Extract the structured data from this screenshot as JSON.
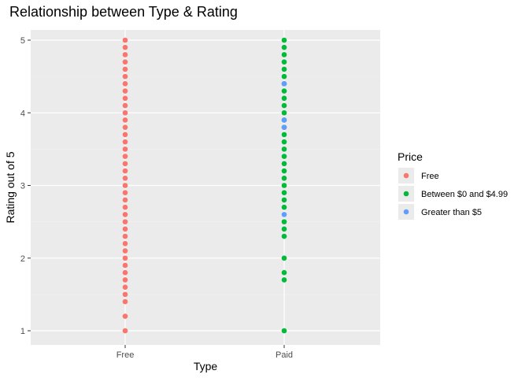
{
  "chart_data": {
    "type": "scatter",
    "title": "Relationship between Type & Rating",
    "xlabel": "Type",
    "ylabel": "Rating out of 5",
    "categories": [
      "Free",
      "Paid"
    ],
    "ylim": [
      1,
      5
    ],
    "yticks": [
      1,
      2,
      3,
      4,
      5
    ],
    "grid": true,
    "legend": {
      "title": "Price",
      "position": "right"
    },
    "series": [
      {
        "name": "Free",
        "color": "#F8766D",
        "points": [
          {
            "x": "Free",
            "y": 1.0
          },
          {
            "x": "Free",
            "y": 1.2
          },
          {
            "x": "Free",
            "y": 1.4
          },
          {
            "x": "Free",
            "y": 1.5
          },
          {
            "x": "Free",
            "y": 1.6
          },
          {
            "x": "Free",
            "y": 1.7
          },
          {
            "x": "Free",
            "y": 1.8
          },
          {
            "x": "Free",
            "y": 1.9
          },
          {
            "x": "Free",
            "y": 2.0
          },
          {
            "x": "Free",
            "y": 2.1
          },
          {
            "x": "Free",
            "y": 2.2
          },
          {
            "x": "Free",
            "y": 2.3
          },
          {
            "x": "Free",
            "y": 2.4
          },
          {
            "x": "Free",
            "y": 2.5
          },
          {
            "x": "Free",
            "y": 2.6
          },
          {
            "x": "Free",
            "y": 2.7
          },
          {
            "x": "Free",
            "y": 2.8
          },
          {
            "x": "Free",
            "y": 2.9
          },
          {
            "x": "Free",
            "y": 3.0
          },
          {
            "x": "Free",
            "y": 3.1
          },
          {
            "x": "Free",
            "y": 3.2
          },
          {
            "x": "Free",
            "y": 3.3
          },
          {
            "x": "Free",
            "y": 3.4
          },
          {
            "x": "Free",
            "y": 3.5
          },
          {
            "x": "Free",
            "y": 3.6
          },
          {
            "x": "Free",
            "y": 3.7
          },
          {
            "x": "Free",
            "y": 3.8
          },
          {
            "x": "Free",
            "y": 3.9
          },
          {
            "x": "Free",
            "y": 4.0
          },
          {
            "x": "Free",
            "y": 4.1
          },
          {
            "x": "Free",
            "y": 4.2
          },
          {
            "x": "Free",
            "y": 4.3
          },
          {
            "x": "Free",
            "y": 4.4
          },
          {
            "x": "Free",
            "y": 4.5
          },
          {
            "x": "Free",
            "y": 4.6
          },
          {
            "x": "Free",
            "y": 4.7
          },
          {
            "x": "Free",
            "y": 4.8
          },
          {
            "x": "Free",
            "y": 4.9
          },
          {
            "x": "Free",
            "y": 5.0
          }
        ]
      },
      {
        "name": "Between $0 and $4.99",
        "color": "#00BA38",
        "points": [
          {
            "x": "Paid",
            "y": 1.0
          },
          {
            "x": "Paid",
            "y": 1.7
          },
          {
            "x": "Paid",
            "y": 1.8
          },
          {
            "x": "Paid",
            "y": 2.0
          },
          {
            "x": "Paid",
            "y": 2.3
          },
          {
            "x": "Paid",
            "y": 2.4
          },
          {
            "x": "Paid",
            "y": 2.5
          },
          {
            "x": "Paid",
            "y": 2.7
          },
          {
            "x": "Paid",
            "y": 2.8
          },
          {
            "x": "Paid",
            "y": 2.9
          },
          {
            "x": "Paid",
            "y": 3.0
          },
          {
            "x": "Paid",
            "y": 3.1
          },
          {
            "x": "Paid",
            "y": 3.2
          },
          {
            "x": "Paid",
            "y": 3.3
          },
          {
            "x": "Paid",
            "y": 3.4
          },
          {
            "x": "Paid",
            "y": 3.5
          },
          {
            "x": "Paid",
            "y": 3.6
          },
          {
            "x": "Paid",
            "y": 3.7
          },
          {
            "x": "Paid",
            "y": 3.8
          },
          {
            "x": "Paid",
            "y": 3.9
          },
          {
            "x": "Paid",
            "y": 4.0
          },
          {
            "x": "Paid",
            "y": 4.1
          },
          {
            "x": "Paid",
            "y": 4.2
          },
          {
            "x": "Paid",
            "y": 4.3
          },
          {
            "x": "Paid",
            "y": 4.4
          },
          {
            "x": "Paid",
            "y": 4.5
          },
          {
            "x": "Paid",
            "y": 4.6
          },
          {
            "x": "Paid",
            "y": 4.7
          },
          {
            "x": "Paid",
            "y": 4.8
          },
          {
            "x": "Paid",
            "y": 4.9
          },
          {
            "x": "Paid",
            "y": 5.0
          }
        ]
      },
      {
        "name": "Greater than $5",
        "color": "#619CFF",
        "points": [
          {
            "x": "Paid",
            "y": 2.6
          },
          {
            "x": "Paid",
            "y": 3.8
          },
          {
            "x": "Paid",
            "y": 3.9
          },
          {
            "x": "Paid",
            "y": 4.4
          }
        ]
      }
    ]
  }
}
